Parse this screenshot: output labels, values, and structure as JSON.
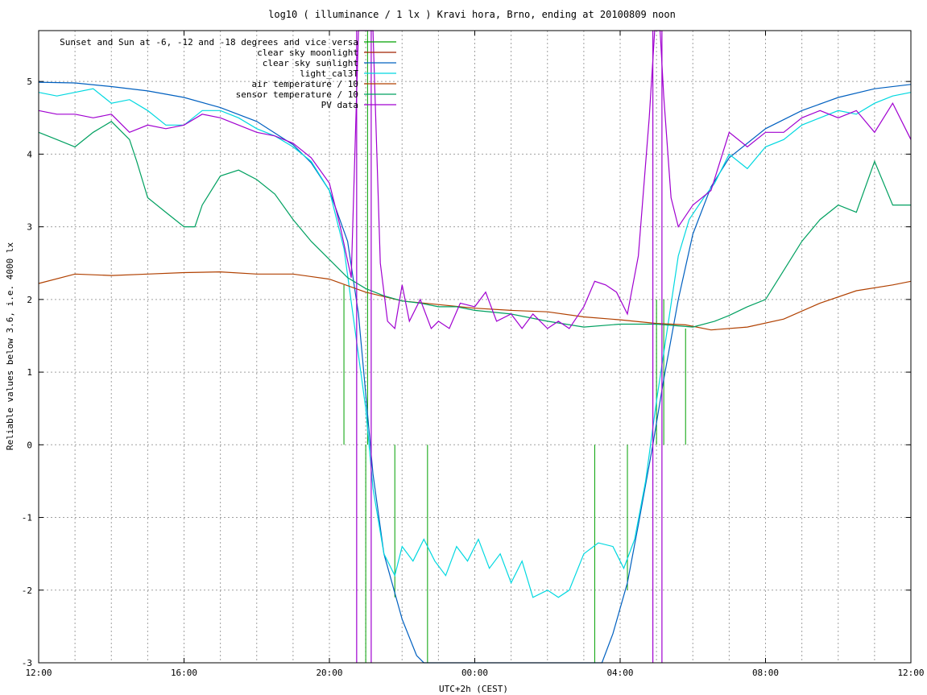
{
  "chart_data": {
    "type": "line",
    "title": "log10 ( illuminance / 1 lx ) Kravi hora, Brno, ending at 20100809 noon",
    "xlabel": "UTC+2h (CEST)",
    "ylabel": "Reliable values below 3.6, i.e. 4000 lx",
    "x_unit": "hours since 12:00 (UTC+2h)",
    "xlim": [
      0,
      24
    ],
    "ylim": [
      -3,
      5.7
    ],
    "x_ticks": [
      {
        "value": 0,
        "label": "12:00"
      },
      {
        "value": 4,
        "label": "16:00"
      },
      {
        "value": 8,
        "label": "20:00"
      },
      {
        "value": 12,
        "label": "00:00"
      },
      {
        "value": 16,
        "label": "04:00"
      },
      {
        "value": 20,
        "label": "08:00"
      },
      {
        "value": 24,
        "label": "12:00"
      }
    ],
    "y_ticks": [
      {
        "value": -3,
        "label": "-3"
      },
      {
        "value": -2,
        "label": "-2"
      },
      {
        "value": -1,
        "label": "-1"
      },
      {
        "value": 0,
        "label": "0"
      },
      {
        "value": 1,
        "label": "1"
      },
      {
        "value": 2,
        "label": "2"
      },
      {
        "value": 3,
        "label": "3"
      },
      {
        "value": 4,
        "label": "4"
      },
      {
        "value": 5,
        "label": "5"
      }
    ],
    "grid": true,
    "grid_x_step": 1,
    "legend_position": "top-right",
    "series": [
      {
        "name": "Sunset and Sun at -6, -12 and -18 degrees and vice versa",
        "color": "#00a000",
        "kind": "vertical-markers",
        "markers": [
          {
            "x": 8.4,
            "y_from": 0,
            "y_to": 2.2
          },
          {
            "x": 9.05,
            "y_from": 0,
            "y_to": 5.7
          },
          {
            "x": 9.0,
            "y_from": 0,
            "y_to": -3
          },
          {
            "x": 9.8,
            "y_from": 0,
            "y_to": -2.1
          },
          {
            "x": 10.7,
            "y_from": 0,
            "y_to": -3
          },
          {
            "x": 15.3,
            "y_from": 0,
            "y_to": -3
          },
          {
            "x": 16.2,
            "y_from": 0,
            "y_to": -2.0
          },
          {
            "x": 17.0,
            "y_from": 0,
            "y_to": 2.0
          },
          {
            "x": 17.2,
            "y_from": 0,
            "y_to": 2.0
          },
          {
            "x": 17.8,
            "y_from": 0,
            "y_to": 1.6
          }
        ]
      },
      {
        "name": "clear sky moonlight",
        "color": "#a02000",
        "points": []
      },
      {
        "name": "clear sky sunlight",
        "color": "#0060c0",
        "points": [
          [
            0,
            4.99
          ],
          [
            1,
            4.98
          ],
          [
            2,
            4.93
          ],
          [
            3,
            4.87
          ],
          [
            4,
            4.78
          ],
          [
            5,
            4.64
          ],
          [
            6,
            4.45
          ],
          [
            7,
            4.13
          ],
          [
            7.5,
            3.88
          ],
          [
            8,
            3.5
          ],
          [
            8.5,
            2.8
          ],
          [
            8.8,
            1.8
          ],
          [
            9.0,
            0.7
          ],
          [
            9.2,
            -0.4
          ],
          [
            9.5,
            -1.5
          ],
          [
            10.0,
            -2.4
          ],
          [
            10.4,
            -2.9
          ],
          [
            10.6,
            -3
          ],
          [
            15.5,
            -3
          ],
          [
            15.8,
            -2.6
          ],
          [
            16.2,
            -1.9
          ],
          [
            16.5,
            -1.1
          ],
          [
            16.9,
            0.0
          ],
          [
            17.2,
            0.9
          ],
          [
            17.6,
            2.0
          ],
          [
            18.0,
            2.9
          ],
          [
            18.5,
            3.55
          ],
          [
            19.0,
            3.95
          ],
          [
            20.0,
            4.35
          ],
          [
            21.0,
            4.6
          ],
          [
            22.0,
            4.78
          ],
          [
            23.0,
            4.9
          ],
          [
            24.0,
            4.96
          ]
        ]
      },
      {
        "name": "light_cal3T",
        "color": "#00d8e0",
        "points": [
          [
            0,
            4.85
          ],
          [
            0.5,
            4.8
          ],
          [
            1,
            4.85
          ],
          [
            1.5,
            4.9
          ],
          [
            2,
            4.7
          ],
          [
            2.5,
            4.75
          ],
          [
            3,
            4.6
          ],
          [
            3.5,
            4.4
          ],
          [
            4,
            4.4
          ],
          [
            4.5,
            4.6
          ],
          [
            5,
            4.6
          ],
          [
            5.5,
            4.5
          ],
          [
            6,
            4.35
          ],
          [
            6.5,
            4.25
          ],
          [
            7,
            4.1
          ],
          [
            7.5,
            3.9
          ],
          [
            8,
            3.5
          ],
          [
            8.4,
            2.7
          ],
          [
            8.7,
            1.6
          ],
          [
            9.0,
            0.5
          ],
          [
            9.2,
            -0.6
          ],
          [
            9.5,
            -1.5
          ],
          [
            9.8,
            -1.8
          ],
          [
            10.0,
            -1.4
          ],
          [
            10.3,
            -1.6
          ],
          [
            10.6,
            -1.3
          ],
          [
            10.9,
            -1.6
          ],
          [
            11.2,
            -1.8
          ],
          [
            11.5,
            -1.4
          ],
          [
            11.8,
            -1.6
          ],
          [
            12.1,
            -1.3
          ],
          [
            12.4,
            -1.7
          ],
          [
            12.7,
            -1.5
          ],
          [
            13.0,
            -1.9
          ],
          [
            13.3,
            -1.6
          ],
          [
            13.6,
            -2.1
          ],
          [
            14.0,
            -2.0
          ],
          [
            14.3,
            -2.1
          ],
          [
            14.6,
            -2.0
          ],
          [
            15.0,
            -1.5
          ],
          [
            15.4,
            -1.35
          ],
          [
            15.8,
            -1.4
          ],
          [
            16.1,
            -1.7
          ],
          [
            16.4,
            -1.3
          ],
          [
            16.7,
            -0.5
          ],
          [
            17.0,
            0.6
          ],
          [
            17.3,
            1.6
          ],
          [
            17.6,
            2.6
          ],
          [
            17.9,
            3.1
          ],
          [
            18.3,
            3.4
          ],
          [
            18.6,
            3.6
          ],
          [
            19.0,
            4.0
          ],
          [
            19.5,
            3.8
          ],
          [
            20.0,
            4.1
          ],
          [
            20.5,
            4.2
          ],
          [
            21.0,
            4.4
          ],
          [
            21.5,
            4.5
          ],
          [
            22.0,
            4.6
          ],
          [
            22.5,
            4.55
          ],
          [
            23.0,
            4.7
          ],
          [
            23.5,
            4.8
          ],
          [
            24.0,
            4.85
          ]
        ]
      },
      {
        "name": "air temperature / 10",
        "color": "#b04000",
        "points": [
          [
            0,
            2.22
          ],
          [
            1,
            2.35
          ],
          [
            2,
            2.33
          ],
          [
            3,
            2.35
          ],
          [
            4,
            2.37
          ],
          [
            5,
            2.38
          ],
          [
            6,
            2.35
          ],
          [
            7,
            2.35
          ],
          [
            8,
            2.28
          ],
          [
            9,
            2.1
          ],
          [
            10,
            1.98
          ],
          [
            11,
            1.93
          ],
          [
            12,
            1.88
          ],
          [
            13,
            1.85
          ],
          [
            14,
            1.83
          ],
          [
            15,
            1.76
          ],
          [
            16,
            1.72
          ],
          [
            17,
            1.67
          ],
          [
            17.8,
            1.65
          ],
          [
            18.5,
            1.58
          ],
          [
            19.5,
            1.62
          ],
          [
            20.5,
            1.73
          ],
          [
            21.5,
            1.95
          ],
          [
            22.5,
            2.12
          ],
          [
            23.5,
            2.2
          ],
          [
            24,
            2.25
          ]
        ]
      },
      {
        "name": "sensor temperature / 10",
        "color": "#00a060",
        "points": [
          [
            0,
            4.3
          ],
          [
            0.5,
            4.2
          ],
          [
            1,
            4.1
          ],
          [
            1.5,
            4.3
          ],
          [
            2,
            4.45
          ],
          [
            2.5,
            4.2
          ],
          [
            2.7,
            3.9
          ],
          [
            3,
            3.4
          ],
          [
            3.5,
            3.2
          ],
          [
            4,
            3.0
          ],
          [
            4.3,
            3.0
          ],
          [
            4.5,
            3.3
          ],
          [
            5,
            3.7
          ],
          [
            5.5,
            3.78
          ],
          [
            6,
            3.65
          ],
          [
            6.5,
            3.45
          ],
          [
            7,
            3.1
          ],
          [
            7.5,
            2.8
          ],
          [
            8,
            2.55
          ],
          [
            8.5,
            2.3
          ],
          [
            9,
            2.15
          ],
          [
            9.5,
            2.05
          ],
          [
            10,
            1.98
          ],
          [
            10.5,
            1.95
          ],
          [
            11,
            1.9
          ],
          [
            11.5,
            1.9
          ],
          [
            12,
            1.85
          ],
          [
            13,
            1.8
          ],
          [
            14,
            1.7
          ],
          [
            15,
            1.62
          ],
          [
            16,
            1.66
          ],
          [
            17,
            1.66
          ],
          [
            18,
            1.62
          ],
          [
            18.6,
            1.7
          ],
          [
            19,
            1.78
          ],
          [
            19.5,
            1.9
          ],
          [
            20,
            2.0
          ],
          [
            20.5,
            2.4
          ],
          [
            21,
            2.8
          ],
          [
            21.5,
            3.1
          ],
          [
            22,
            3.3
          ],
          [
            22.5,
            3.2
          ],
          [
            23,
            3.9
          ],
          [
            23.5,
            3.3
          ],
          [
            24,
            3.3
          ]
        ]
      },
      {
        "name": "PV data",
        "color": "#a000d0",
        "points": [
          [
            0,
            4.6
          ],
          [
            0.5,
            4.55
          ],
          [
            1,
            4.55
          ],
          [
            1.5,
            4.5
          ],
          [
            2,
            4.55
          ],
          [
            2.5,
            4.3
          ],
          [
            3,
            4.4
          ],
          [
            3.5,
            4.35
          ],
          [
            4,
            4.4
          ],
          [
            4.5,
            4.55
          ],
          [
            5,
            4.5
          ],
          [
            5.5,
            4.4
          ],
          [
            6,
            4.3
          ],
          [
            6.5,
            4.25
          ],
          [
            7,
            4.15
          ],
          [
            7.5,
            3.95
          ],
          [
            8,
            3.6
          ],
          [
            8.3,
            3.0
          ],
          [
            8.6,
            2.3
          ],
          [
            8.8,
            5.7
          ],
          [
            9.2,
            5.7
          ],
          [
            9.4,
            2.5
          ],
          [
            9.6,
            1.7
          ],
          [
            9.8,
            1.6
          ],
          [
            10.0,
            2.2
          ],
          [
            10.2,
            1.7
          ],
          [
            10.5,
            2.0
          ],
          [
            10.8,
            1.6
          ],
          [
            11.0,
            1.7
          ],
          [
            11.3,
            1.6
          ],
          [
            11.6,
            1.95
          ],
          [
            12.0,
            1.9
          ],
          [
            12.3,
            2.1
          ],
          [
            12.6,
            1.7
          ],
          [
            13.0,
            1.8
          ],
          [
            13.3,
            1.6
          ],
          [
            13.6,
            1.8
          ],
          [
            14.0,
            1.6
          ],
          [
            14.3,
            1.7
          ],
          [
            14.6,
            1.6
          ],
          [
            15.0,
            1.9
          ],
          [
            15.3,
            2.25
          ],
          [
            15.6,
            2.2
          ],
          [
            15.9,
            2.1
          ],
          [
            16.2,
            1.8
          ],
          [
            16.5,
            2.6
          ],
          [
            16.8,
            4.5
          ],
          [
            16.95,
            5.7
          ],
          [
            17.1,
            5.7
          ],
          [
            17.2,
            4.8
          ],
          [
            17.4,
            3.4
          ],
          [
            17.6,
            3.0
          ],
          [
            18.0,
            3.3
          ],
          [
            18.5,
            3.5
          ],
          [
            19.0,
            4.3
          ],
          [
            19.5,
            4.1
          ],
          [
            20.0,
            4.3
          ],
          [
            20.5,
            4.3
          ],
          [
            21.0,
            4.5
          ],
          [
            21.5,
            4.6
          ],
          [
            22.0,
            4.5
          ],
          [
            22.5,
            4.6
          ],
          [
            23.0,
            4.3
          ],
          [
            23.5,
            4.7
          ],
          [
            24.0,
            4.2
          ]
        ]
      }
    ],
    "pv_vertical_lines": [
      {
        "x": 8.75,
        "y_from": -3,
        "y_to": 5.7
      },
      {
        "x": 9.15,
        "y_from": -3,
        "y_to": 5.7
      },
      {
        "x": 16.9,
        "y_from": -3,
        "y_to": 5.7
      },
      {
        "x": 17.15,
        "y_from": -3,
        "y_to": 5.7
      }
    ]
  }
}
